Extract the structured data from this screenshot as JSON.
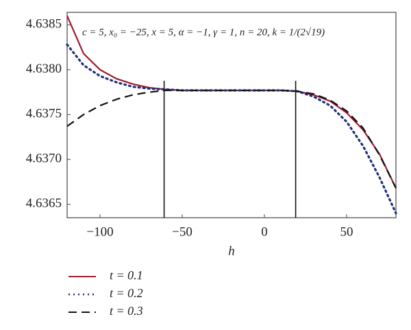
{
  "chart_data": {
    "type": "line",
    "annotation": "c = 5, x₀ = −25, x = 5, α = −1, γ = 1, n = 20, k = 1/(2√19)",
    "xlabel": "h",
    "x": [
      -120,
      -110,
      -100,
      -90,
      -80,
      -70,
      -60,
      -50,
      -40,
      -30,
      -20,
      -10,
      0,
      10,
      20,
      30,
      40,
      50,
      60,
      70,
      80
    ],
    "series": [
      {
        "name": "t = 0.1",
        "color": "#a0192e",
        "dash": "solid",
        "values": [
          4.6386,
          4.63818,
          4.638,
          4.6379,
          4.63784,
          4.6378,
          4.63778,
          4.63777,
          4.63777,
          4.63777,
          4.63777,
          4.63777,
          4.63777,
          4.63777,
          4.63776,
          4.63772,
          4.63765,
          4.63752,
          4.63733,
          4.63706,
          4.63668
        ]
      },
      {
        "name": "t = 0.2",
        "color": "#1f2d7a",
        "dash": "dotted",
        "values": [
          4.63828,
          4.63805,
          4.63793,
          4.63786,
          4.63781,
          4.63779,
          4.63778,
          4.63777,
          4.63777,
          4.63777,
          4.63777,
          4.63777,
          4.63777,
          4.63777,
          4.63776,
          4.6377,
          4.6376,
          4.63742,
          4.63715,
          4.6368,
          4.6364
        ]
      },
      {
        "name": "t = 0.3",
        "color": "#111111",
        "dash": "dashed",
        "values": [
          4.63737,
          4.6375,
          4.6376,
          4.63767,
          4.63772,
          4.63775,
          4.63777,
          4.63777,
          4.63777,
          4.63777,
          4.63777,
          4.63777,
          4.63777,
          4.63777,
          4.63776,
          4.63773,
          4.63766,
          4.63754,
          4.63735,
          4.63705,
          4.63668
        ]
      }
    ],
    "vlines": [
      -61,
      19
    ],
    "xlim": [
      -120,
      80
    ],
    "ylim": [
      4.63635,
      4.63864
    ],
    "xticks": [
      {
        "value": -100,
        "label": "−100"
      },
      {
        "value": -50,
        "label": "−50"
      },
      0,
      50
    ],
    "yticks": [
      4.6365,
      {
        "value": 4.637,
        "label": "4.6370"
      },
      4.6375,
      {
        "value": 4.638,
        "label": "4.6380"
      },
      4.6385
    ],
    "grid": false,
    "legend": "bottom-left"
  }
}
